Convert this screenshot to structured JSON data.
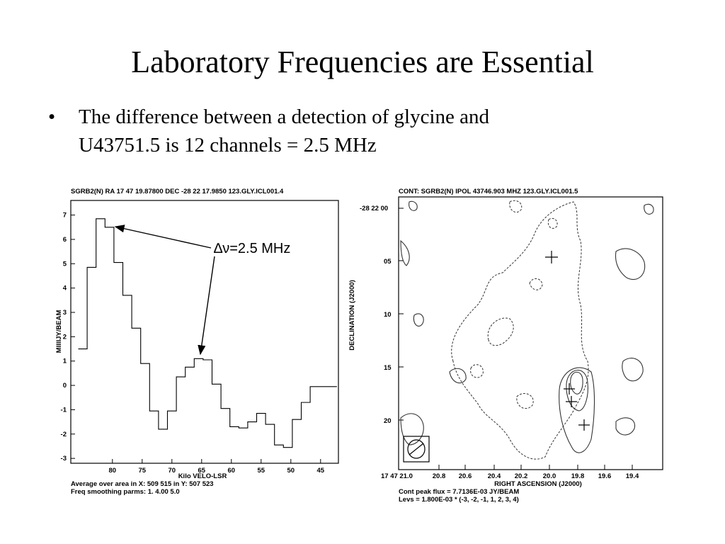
{
  "slide": {
    "title": "Laboratory Frequencies are Essential",
    "bullet_symbol": "•",
    "bullet_line1": "The difference between a detection of glycine and",
    "bullet_line2": "U43751.5 is 12 channels = 2.5 MHz",
    "annotation": "∆ν=2.5 MHz"
  },
  "chart_data": [
    {
      "type": "line",
      "title": "SGRB2(N)  RA 17 47 19.87800  DEC -28 22 17.9850  123.GLY.ICL001.4",
      "xlabel": "Kilo VELO-LSR",
      "ylabel": "MIllIJY/BEAM",
      "xlim": [
        87,
        42
      ],
      "ylim": [
        -3.2,
        7.6
      ],
      "x_ticks": [
        "80",
        "75",
        "70",
        "65",
        "60",
        "55",
        "50",
        "45"
      ],
      "y_ticks": [
        "7",
        "6",
        "5",
        "4",
        "3",
        "2",
        "1",
        "0",
        "-1",
        "-2",
        "-3"
      ],
      "x": [
        85.0,
        83.5,
        82.0,
        80.5,
        79.0,
        77.5,
        76.0,
        74.5,
        73.0,
        71.5,
        70.0,
        68.5,
        67.0,
        65.5,
        64.0,
        62.5,
        61.0,
        59.5,
        58.0,
        56.5,
        55.0,
        53.5,
        52.0,
        50.5,
        49.0,
        47.5,
        46.0,
        44.5,
        43.0
      ],
      "values": [
        1.5,
        4.85,
        6.85,
        6.5,
        5.05,
        3.7,
        2.35,
        0.9,
        -1.05,
        -1.8,
        -1.05,
        0.35,
        0.75,
        1.1,
        1.05,
        0.05,
        -0.95,
        -1.7,
        -1.75,
        -1.5,
        -1.15,
        -1.6,
        -2.45,
        -2.55,
        -1.4,
        -0.7,
        -0.05,
        -0.05,
        -0.05
      ],
      "footer_lines": [
        "Average over area in X:  509  515    in Y:  507  523",
        "Freq smoothing parms: 1. 4.00  5.0"
      ]
    },
    {
      "type": "contour",
      "title": "CONT: SGRB2(N)  IPOL  43746.903 MHZ  123.GLY.ICL001.5",
      "xlabel": "RIGHT ASCENSION (J2000)",
      "ylabel": "DECLINATION (J2000)",
      "x_ticks": [
        "17 47 21.0",
        "20.8",
        "20.6",
        "20.4",
        "20.2",
        "20.0",
        "19.8",
        "19.6",
        "19.4"
      ],
      "y_ticks": [
        "-28 22 00",
        "05",
        "10",
        "15",
        "20"
      ],
      "footer_lines": [
        "Cont peak flux =  7.7136E-03 JY/BEAM",
        "Levs = 1.800E-03 * (-3, -2, -1, 1, 2, 3, 4)"
      ]
    }
  ]
}
